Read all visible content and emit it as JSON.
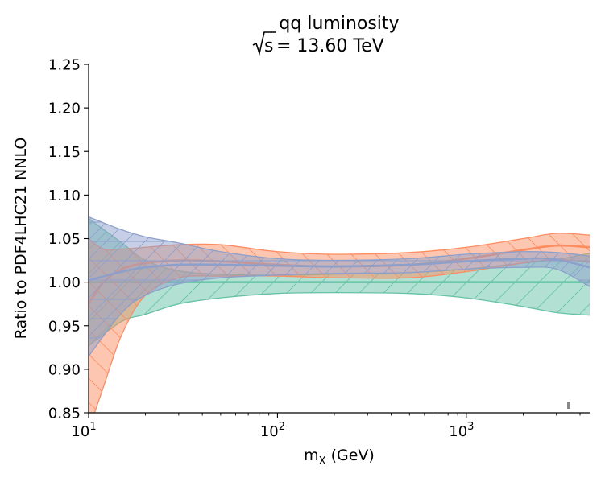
{
  "chart_data": {
    "type": "area",
    "title_line1": "qq luminosity",
    "title_line2_prefix": "s",
    "title_line2_suffix": " = 13.60 TeV",
    "xlabel_main": "m",
    "xlabel_sub": "X",
    "xlabel_rest": " (GeV)",
    "ylabel": "Ratio to PDF4LHC21 NNLO",
    "xscale": "log",
    "xlim": [
      10,
      4500
    ],
    "ylim": [
      0.85,
      1.25
    ],
    "ytick_values": [
      0.85,
      0.9,
      0.95,
      1.0,
      1.05,
      1.1,
      1.15,
      1.2,
      1.25
    ],
    "ytick_labels": [
      "0.85",
      "0.90",
      "0.95",
      "1.00",
      "1.05",
      "1.10",
      "1.15",
      "1.20",
      "1.25"
    ],
    "xtick_values": [
      10,
      100,
      1000
    ],
    "xtick_base": [
      "10",
      "10",
      "10"
    ],
    "xtick_exp": [
      "1",
      "2",
      "3"
    ],
    "grid": false,
    "legend": "none",
    "colors": {
      "green": "#66c2a5",
      "orange": "#fc8d62",
      "blue": "#8da0cb"
    },
    "series": [
      {
        "name": "green",
        "color": "#66c2a5",
        "x": [
          10,
          15,
          20,
          30,
          50,
          100,
          200,
          500,
          1000,
          2000,
          3000,
          4500
        ],
        "central": [
          1.0,
          1.0,
          1.0,
          1.0,
          1.0,
          1.0,
          1.0,
          1.0,
          1.0,
          1.0,
          1.0,
          1.0
        ],
        "upper": [
          1.073,
          1.045,
          1.025,
          1.013,
          1.009,
          1.008,
          1.009,
          1.011,
          1.015,
          1.022,
          1.026,
          1.033
        ],
        "lower": [
          0.927,
          0.955,
          0.963,
          0.975,
          0.982,
          0.987,
          0.988,
          0.987,
          0.982,
          0.972,
          0.965,
          0.962
        ]
      },
      {
        "name": "orange",
        "color": "#fc8d62",
        "x": [
          10,
          12,
          15,
          20,
          30,
          50,
          100,
          200,
          500,
          1000,
          2000,
          3000,
          4500
        ],
        "central": [
          0.975,
          1.0,
          1.015,
          1.022,
          1.025,
          1.024,
          1.02,
          1.018,
          1.02,
          1.027,
          1.037,
          1.042,
          1.04
        ],
        "upper": [
          1.05,
          1.038,
          1.038,
          1.04,
          1.043,
          1.043,
          1.035,
          1.032,
          1.034,
          1.04,
          1.05,
          1.056,
          1.054
        ],
        "lower": [
          0.83,
          0.88,
          0.94,
          0.985,
          1.005,
          1.007,
          1.007,
          1.005,
          1.005,
          1.012,
          1.022,
          1.026,
          1.023
        ]
      },
      {
        "name": "blue",
        "color": "#8da0cb",
        "x": [
          10,
          15,
          20,
          30,
          50,
          100,
          200,
          500,
          1000,
          2000,
          3000,
          4500
        ],
        "central": [
          1.002,
          1.012,
          1.017,
          1.02,
          1.02,
          1.019,
          1.018,
          1.02,
          1.024,
          1.027,
          1.026,
          1.017
        ],
        "upper": [
          1.075,
          1.06,
          1.052,
          1.045,
          1.035,
          1.027,
          1.025,
          1.027,
          1.032,
          1.035,
          1.034,
          1.03
        ],
        "lower": [
          0.915,
          0.965,
          0.985,
          0.998,
          1.005,
          1.008,
          1.01,
          1.011,
          1.015,
          1.017,
          1.015,
          0.995
        ]
      }
    ]
  }
}
